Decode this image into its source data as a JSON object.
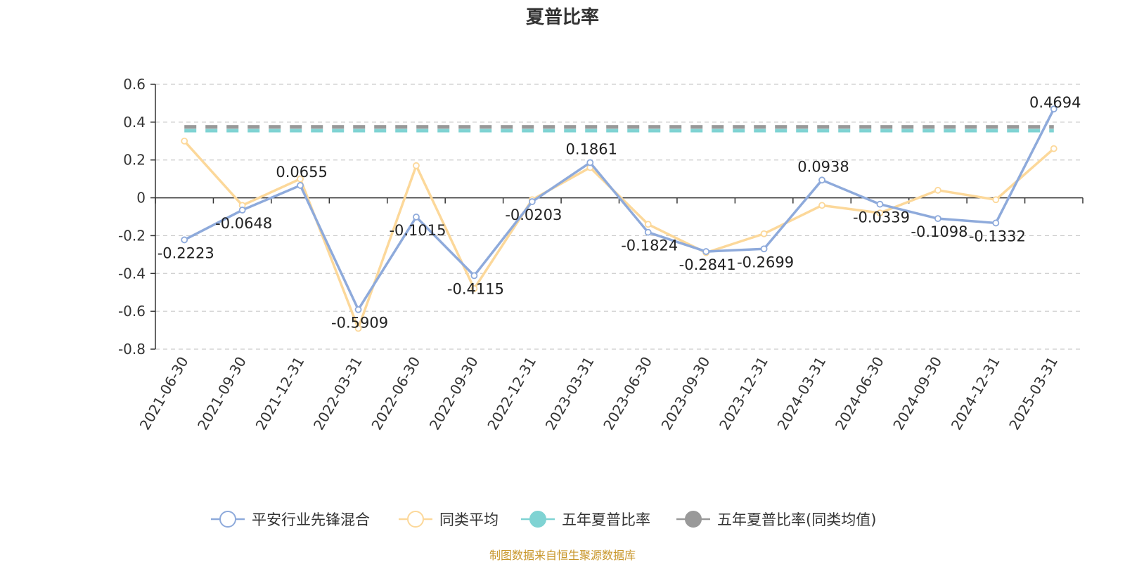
{
  "chart_data": {
    "type": "line",
    "title": "夏普比率",
    "categories": [
      "2021-06-30",
      "2021-09-30",
      "2021-12-31",
      "2022-03-31",
      "2022-06-30",
      "2022-09-30",
      "2022-12-31",
      "2023-03-31",
      "2023-06-30",
      "2023-09-30",
      "2023-12-31",
      "2024-03-31",
      "2024-06-30",
      "2024-09-30",
      "2024-12-31",
      "2025-03-31"
    ],
    "y_ticks": [
      "0.6",
      "0.4",
      "0.2",
      "0",
      "-0.2",
      "-0.4",
      "-0.6",
      "-0.8"
    ],
    "ylim": [
      -0.8,
      0.6
    ],
    "grid": true,
    "legend_position": "bottom",
    "series": [
      {
        "name": "平安行业先锋混合",
        "color": "#8eaadb",
        "style": "line",
        "values": [
          -0.2223,
          -0.0648,
          0.0655,
          -0.5909,
          -0.1015,
          -0.4115,
          -0.0203,
          0.1861,
          -0.1824,
          -0.2841,
          -0.2699,
          0.0938,
          -0.0339,
          -0.1098,
          -0.1332,
          0.4694
        ],
        "labels": [
          "-0.2223",
          "-0.0648",
          "0.0655",
          "-0.5909",
          "-0.1015",
          "-0.4115",
          "-0.0203",
          "0.1861",
          "-0.1824",
          "-0.2841",
          "-0.2699",
          "0.0938",
          "-0.0339",
          "-0.1098",
          "-0.1332",
          "0.4694"
        ]
      },
      {
        "name": "同类平均",
        "color": "#fcd89a",
        "style": "line",
        "values": [
          0.3,
          -0.04,
          0.1,
          -0.69,
          0.17,
          -0.48,
          -0.01,
          0.16,
          -0.14,
          -0.29,
          -0.19,
          -0.04,
          -0.08,
          0.04,
          -0.01,
          0.26
        ]
      },
      {
        "name": "五年夏普比率",
        "color": "#7fd3d3",
        "style": "dashed-flat",
        "value": 0.355
      },
      {
        "name": "五年夏普比率(同类均值)",
        "color": "#999999",
        "style": "dashed-flat",
        "value": 0.375
      }
    ],
    "source_note": "制图数据来自恒生聚源数据库"
  }
}
